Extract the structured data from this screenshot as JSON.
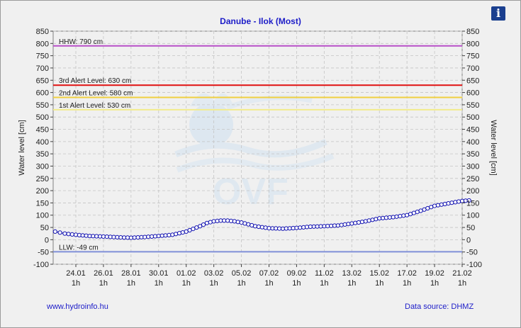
{
  "chart_data": {
    "type": "line",
    "title": "Danube - Ilok (Most)",
    "ylabel_left": "Water level [cm]",
    "ylabel_right": "Water level [cm]",
    "ylim": [
      -100,
      850
    ],
    "yticks": [
      -100,
      -50,
      0,
      50,
      100,
      150,
      200,
      250,
      300,
      350,
      400,
      450,
      500,
      550,
      600,
      650,
      700,
      750,
      800,
      850
    ],
    "xticks": [
      {
        "day": "24.01",
        "hour": "1h"
      },
      {
        "day": "26.01",
        "hour": "1h"
      },
      {
        "day": "28.01",
        "hour": "1h"
      },
      {
        "day": "30.01",
        "hour": "1h"
      },
      {
        "day": "01.02",
        "hour": "1h"
      },
      {
        "day": "03.02",
        "hour": "1h"
      },
      {
        "day": "05.02",
        "hour": "1h"
      },
      {
        "day": "07.02",
        "hour": "1h"
      },
      {
        "day": "09.02",
        "hour": "1h"
      },
      {
        "day": "11.02",
        "hour": "1h"
      },
      {
        "day": "13.02",
        "hour": "1h"
      },
      {
        "day": "15.02",
        "hour": "1h"
      },
      {
        "day": "17.02",
        "hour": "1h"
      },
      {
        "day": "19.02",
        "hour": "1h"
      },
      {
        "day": "21.02",
        "hour": "1h"
      }
    ],
    "grid": true,
    "reference_lines": [
      {
        "label": "HHW: 790 cm",
        "value": 790,
        "color": "#b84fc8"
      },
      {
        "label": "3rd Alert Level: 630 cm",
        "value": 630,
        "color": "#e01010"
      },
      {
        "label": "2nd Alert Level: 580 cm",
        "value": 580,
        "color": "#f0d040"
      },
      {
        "label": "1st Alert Level: 530 cm",
        "value": 530,
        "color": "#f2ec8c"
      },
      {
        "label": "LLW: -49 cm",
        "value": -49,
        "color": "#7f8fd8"
      }
    ],
    "series": [
      {
        "color": "#1010b0",
        "x_days": [
          -1.5,
          -0.8,
          0,
          1,
          2,
          3,
          4,
          5,
          6,
          7,
          8,
          9,
          9.5,
          10,
          10.5,
          11,
          11.5,
          12,
          13,
          14,
          15,
          16,
          17,
          18,
          19,
          20,
          21,
          22,
          23,
          24,
          25,
          26,
          27,
          28,
          28.5
        ],
        "values": [
          33,
          25,
          20,
          15,
          13,
          10,
          8,
          11,
          15,
          20,
          33,
          55,
          68,
          75,
          78,
          78,
          75,
          70,
          55,
          47,
          45,
          48,
          53,
          55,
          58,
          66,
          75,
          87,
          92,
          100,
          118,
          138,
          148,
          158,
          160
        ]
      }
    ]
  },
  "footer": {
    "left_link": "www.hydroinfo.hu",
    "right_text": "Data source: DHMZ"
  },
  "info_label": "i"
}
